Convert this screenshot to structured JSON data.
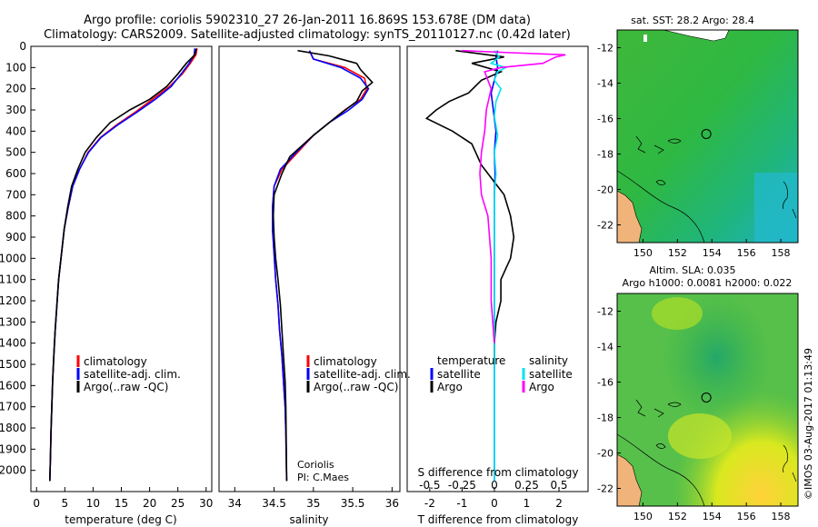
{
  "header": {
    "line1": "Argo profile: coriolis 5902310_27 26-Jan-2011 16.869S 153.678E (DM data)",
    "line2": "Climatology: CARS2009. Satellite-adjusted climatology: synTS_20110127.nc (0.42d later)"
  },
  "colors": {
    "climatology": "#ff0000",
    "satellite": "#0000ff",
    "argo": "#000000",
    "sal_satellite": "#00e5ee",
    "sal_argo": "#ff00ff"
  },
  "chart_data": [
    {
      "type": "line",
      "id": "temperature",
      "xlabel": "temperature (deg C)",
      "ylabel": "",
      "xlim": [
        -1,
        31
      ],
      "ylim": [
        2100,
        0
      ],
      "xticks": [
        0,
        5,
        10,
        15,
        20,
        25,
        30
      ],
      "xtick_labels": [
        "0",
        "5",
        "10",
        "15",
        "20",
        "25",
        "30"
      ],
      "yticks": [
        0,
        100,
        200,
        300,
        400,
        500,
        600,
        700,
        800,
        900,
        1000,
        1100,
        1200,
        1300,
        1400,
        1500,
        1600,
        1700,
        1800,
        1900,
        2000
      ],
      "ytick_labels": [
        "0",
        "100",
        "200",
        "300",
        "400",
        "500",
        "600",
        "700",
        "800",
        "900",
        "1000",
        "1100",
        "1200",
        "1300",
        "1400",
        "1500",
        "1600",
        "1700",
        "1800",
        "1900",
        "2000"
      ],
      "legend": [
        "climatology",
        "satellite-adj. clim.",
        "Argo(..raw -QC)"
      ],
      "series": [
        {
          "name": "climatology",
          "x": [
            28.4,
            28.2,
            27.2,
            25.8,
            23.5,
            20.5,
            17.5,
            14.2,
            11.3,
            9.1,
            7.6,
            6.4,
            5.6,
            4.9,
            4.4,
            3.9,
            3.6,
            3.3,
            3.05,
            2.85,
            2.7,
            2.55,
            2.45,
            2.35
          ],
          "y": [
            10,
            40,
            80,
            130,
            190,
            250,
            310,
            370,
            430,
            500,
            580,
            660,
            760,
            860,
            980,
            1100,
            1220,
            1340,
            1460,
            1580,
            1700,
            1820,
            1940,
            2050
          ]
        },
        {
          "name": "satellite-adj. clim.",
          "x": [
            28.0,
            27.9,
            27.0,
            25.6,
            23.8,
            21.0,
            17.8,
            14.4,
            11.4,
            9.2,
            7.6,
            6.4,
            5.6,
            4.9,
            4.4,
            3.9,
            3.6,
            3.3,
            3.05,
            2.85,
            2.7,
            2.55,
            2.45,
            2.35
          ],
          "y": [
            10,
            40,
            80,
            130,
            190,
            250,
            310,
            370,
            430,
            500,
            580,
            660,
            760,
            860,
            980,
            1100,
            1220,
            1340,
            1460,
            1580,
            1700,
            1820,
            1940,
            2050
          ]
        },
        {
          "name": "Argo(..raw -QC)",
          "x": [
            28.3,
            28.0,
            26.5,
            25.0,
            23.0,
            20.0,
            16.5,
            13.0,
            10.6,
            8.6,
            7.3,
            6.2,
            5.5,
            4.9,
            4.4,
            3.9,
            3.6,
            3.3,
            3.05,
            2.85,
            2.7,
            2.55,
            2.45,
            2.35
          ],
          "y": [
            10,
            40,
            80,
            130,
            190,
            250,
            300,
            360,
            430,
            500,
            580,
            660,
            760,
            860,
            980,
            1100,
            1220,
            1340,
            1460,
            1580,
            1700,
            1820,
            1940,
            2050
          ]
        }
      ]
    },
    {
      "type": "line",
      "id": "salinity",
      "xlabel": "salinity",
      "xlim": [
        33.8,
        36.1
      ],
      "ylim": [
        2100,
        0
      ],
      "xticks": [
        34,
        34.5,
        35,
        35.5,
        36
      ],
      "xtick_labels": [
        "34",
        "34.5",
        "35",
        "35.5",
        "36"
      ],
      "legend": [
        "climatology",
        "satellite-adj. clim.",
        "Argo(..raw -QC)"
      ],
      "annotation": [
        "Coriolis",
        "PI: C.Maes"
      ],
      "series": [
        {
          "name": "climatology",
          "x": [
            34.95,
            35.0,
            35.4,
            35.65,
            35.68,
            35.6,
            35.4,
            35.2,
            35.0,
            34.8,
            34.6,
            34.5,
            34.48,
            34.48,
            34.5,
            34.52,
            34.55,
            34.57,
            34.6,
            34.62,
            34.64,
            34.65,
            34.66
          ],
          "y": [
            20,
            60,
            100,
            150,
            200,
            250,
            300,
            360,
            420,
            500,
            580,
            660,
            760,
            860,
            980,
            1100,
            1220,
            1340,
            1460,
            1580,
            1700,
            1820,
            2050
          ]
        },
        {
          "name": "satellite-adj. clim.",
          "x": [
            34.95,
            35.0,
            35.35,
            35.6,
            35.7,
            35.62,
            35.45,
            35.2,
            35.0,
            34.78,
            34.58,
            34.5,
            34.48,
            34.48,
            34.5,
            34.52,
            34.55,
            34.57,
            34.6,
            34.62,
            34.64,
            34.65,
            34.66
          ],
          "y": [
            20,
            60,
            100,
            150,
            200,
            250,
            300,
            360,
            420,
            500,
            580,
            660,
            760,
            860,
            980,
            1100,
            1220,
            1340,
            1460,
            1580,
            1700,
            1820,
            2050
          ]
        },
        {
          "name": "Argo(..raw -QC)",
          "x": [
            34.8,
            35.2,
            35.55,
            35.6,
            35.75,
            35.62,
            35.55,
            35.3,
            35.0,
            34.7,
            34.6,
            34.5,
            34.49,
            34.5,
            34.52,
            34.55,
            34.58,
            34.6,
            34.62,
            34.64,
            34.65,
            34.66
          ],
          "y": [
            20,
            45,
            80,
            110,
            170,
            210,
            260,
            330,
            420,
            520,
            600,
            700,
            800,
            900,
            1000,
            1100,
            1220,
            1340,
            1460,
            1580,
            1700,
            2050
          ]
        }
      ]
    },
    {
      "type": "line",
      "id": "difference",
      "xlabel": "T difference from climatology",
      "top_label": "S difference from climatology",
      "xlim": [
        -2.7,
        2.9
      ],
      "ylim": [
        2100,
        0
      ],
      "xticks": [
        -2,
        -1,
        0,
        1,
        2
      ],
      "xtick_labels": [
        "-2",
        "-1",
        "0",
        "1",
        "2"
      ],
      "s_xticks": [
        -2,
        -1,
        0,
        1,
        2
      ],
      "s_xtick_labels": [
        "-0.5",
        "-0.25",
        "0",
        "0.25",
        "0.5"
      ],
      "legend": {
        "temperature_title": "temperature",
        "salinity_title": "salinity",
        "items": [
          "satellite",
          "Argo",
          "satellite",
          "Argo"
        ]
      },
      "series": [
        {
          "name": "temperature satellite",
          "x": [
            0.1,
            0.05,
            0.1,
            0.0,
            -0.1,
            -0.05,
            0.0,
            0.05,
            0.0,
            0.02,
            0.0,
            0.0,
            0.0,
            0.0,
            0.0,
            0.0,
            0.0,
            0.0,
            0.0,
            0.0,
            0.0
          ],
          "y": [
            20,
            50,
            100,
            160,
            220,
            280,
            340,
            400,
            500,
            600,
            700,
            800,
            900,
            1000,
            1200,
            1400,
            1600,
            1800,
            1900,
            2000,
            2050
          ]
        },
        {
          "name": "temperature Argo",
          "x": [
            -1.2,
            0.3,
            -0.7,
            0.2,
            -0.4,
            -0.8,
            -1.4,
            -1.8,
            -2.1,
            -1.3,
            -0.7,
            -0.4,
            0.3,
            0.5,
            0.6,
            0.5,
            0.2,
            0.2,
            0.05,
            0.0,
            0.0
          ],
          "y": [
            20,
            50,
            80,
            120,
            160,
            220,
            260,
            300,
            340,
            400,
            460,
            560,
            700,
            800,
            900,
            1000,
            1100,
            1200,
            1300,
            1400,
            1500
          ]
        },
        {
          "name": "salinity satellite",
          "x": [
            0.0,
            0.15,
            -0.1,
            0.35,
            0.1,
            0.0,
            0.2,
            0.05,
            0.0,
            0.1,
            0.0,
            0.05,
            0.0,
            0.0,
            0.0,
            0.0,
            0.0,
            0.0,
            0.0,
            0.0
          ],
          "y": [
            20,
            50,
            80,
            100,
            120,
            160,
            200,
            260,
            330,
            420,
            500,
            600,
            700,
            800,
            1000,
            1200,
            1400,
            1600,
            1800,
            2050
          ]
        },
        {
          "name": "salinity Argo",
          "x": [
            -1.0,
            0.5,
            2.2,
            1.9,
            1.5,
            0.2,
            -0.3,
            -0.1,
            -0.25,
            -0.3,
            -0.4,
            -0.45,
            -0.4,
            -0.2,
            -0.15,
            -0.1,
            -0.1,
            0.0
          ],
          "y": [
            20,
            30,
            40,
            50,
            80,
            100,
            120,
            200,
            300,
            400,
            500,
            600,
            700,
            800,
            900,
            1000,
            1200,
            1400
          ]
        }
      ]
    },
    {
      "type": "heatmap",
      "id": "sst_map",
      "title": "sat. SST: 28.2 Argo: 28.4",
      "xlim": [
        148.5,
        159
      ],
      "ylim": [
        -23,
        -11
      ],
      "xticks": [
        150,
        152,
        154,
        156,
        158
      ],
      "xtick_labels": [
        "150",
        "152",
        "154",
        "156",
        "158"
      ],
      "yticks": [
        -12,
        -14,
        -16,
        -18,
        -20,
        -22
      ],
      "ytick_labels": [
        "-12",
        "-14",
        "-16",
        "-18",
        "-20",
        "-22"
      ],
      "profile_position": [
        153.678,
        -16.869
      ]
    },
    {
      "type": "heatmap",
      "id": "sla_map",
      "title": "Altim. SLA: 0.035",
      "subtitle": "Argo h1000: 0.0081 h2000: 0.022",
      "xlim": [
        148.5,
        159
      ],
      "ylim": [
        -23,
        -11
      ],
      "xticks": [
        150,
        152,
        154,
        156,
        158
      ],
      "xtick_labels": [
        "150",
        "152",
        "154",
        "156",
        "158"
      ],
      "yticks": [
        -12,
        -14,
        -16,
        -18,
        -20,
        -22
      ],
      "ytick_labels": [
        "-12",
        "-14",
        "-16",
        "-18",
        "-20",
        "-22"
      ],
      "profile_position": [
        153.678,
        -16.869
      ]
    }
  ],
  "credit": "©IMOS 03-Aug-2017 01:13:49"
}
